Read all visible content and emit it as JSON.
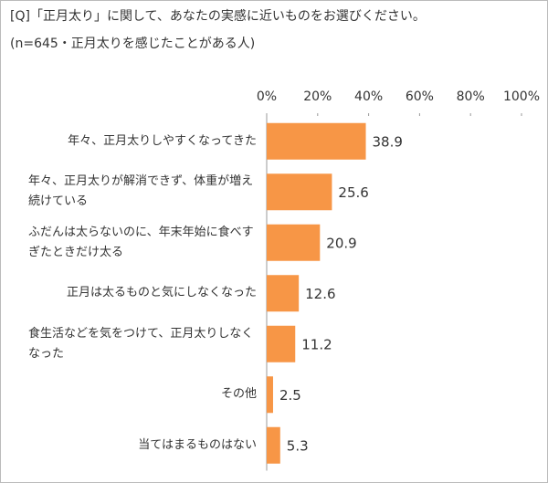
{
  "chart_data": {
    "type": "bar",
    "orientation": "horizontal",
    "title": "[Q]「正月太り」に関して、あなたの実感に近いものをお選びください。",
    "subtitle": "(n=645・正月太りを感じたことがある人)",
    "categories": [
      "年々、正月太りしやすくなってきた",
      "年々、正月太りが解消できず、体重が増え続けている",
      "ふだんは太らないのに、年末年始に食べすぎたときだけ太る",
      "正月は太るものと気にしなくなった",
      "食生活などを気をつけて、正月太りしなくなった",
      "その他",
      "当てはまるものはない"
    ],
    "values": [
      38.9,
      25.6,
      20.9,
      12.6,
      11.2,
      2.5,
      5.3
    ],
    "color": "#f79646",
    "xlim": [
      0,
      100
    ],
    "xticks": [
      {
        "value": 0,
        "label": "0%"
      },
      {
        "value": 20,
        "label": "20%"
      },
      {
        "value": 40,
        "label": "40%"
      },
      {
        "value": 60,
        "label": "60%"
      },
      {
        "value": 80,
        "label": "80%"
      },
      {
        "value": 100,
        "label": "100%"
      }
    ],
    "grid": false
  }
}
